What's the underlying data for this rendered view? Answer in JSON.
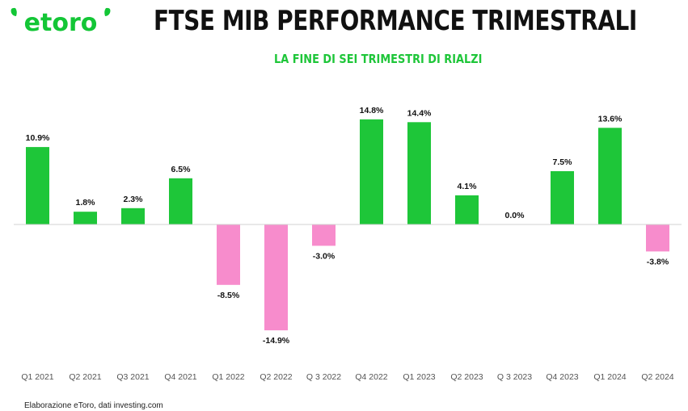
{
  "header": {
    "logo_text": "etoro",
    "title": "FTSE MIB PERFORMANCE TRIMESTRALI",
    "subtitle": "LA FINE DI SEI TRIMESTRI DI RIALZI"
  },
  "footer": {
    "source": "Elaborazione eToro, dati investing.com"
  },
  "colors": {
    "positive": "#1ec639",
    "negative": "#f78ccc",
    "brand": "#13c636",
    "axis": "#d0d0d0"
  },
  "chart_data": {
    "type": "bar",
    "categories": [
      "Q1 2021",
      "Q2 2021",
      "Q3 2021",
      "Q4 2021",
      "Q1 2022",
      "Q2 2022",
      "Q 3 2022",
      "Q4 2022",
      "Q1 2023",
      "Q2 2023",
      "Q 3 2023",
      "Q4 2023",
      "Q1 2024",
      "Q2 2024"
    ],
    "values": [
      10.9,
      1.8,
      2.3,
      6.5,
      -8.5,
      -14.9,
      -3.0,
      14.8,
      14.4,
      4.1,
      0.0,
      7.5,
      13.6,
      -3.8
    ],
    "labels": [
      "10.9%",
      "1.8%",
      "2.3%",
      "6.5%",
      "-8.5%",
      "-14.9%",
      "-3.0%",
      "14.8%",
      "14.4%",
      "4.1%",
      "0.0%",
      "7.5%",
      "13.6%",
      "-3.8%"
    ],
    "ylim": [
      -15,
      15
    ],
    "grid": false,
    "legend": "none"
  }
}
